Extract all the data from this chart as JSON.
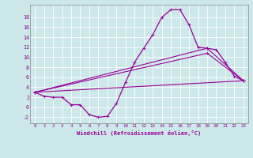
{
  "xlabel": "Windchill (Refroidissement éolien,°C)",
  "bg_color": "#cce8e8",
  "line_color": "#990099",
  "grid_color": "#ffffff",
  "xlim": [
    -0.5,
    23.5
  ],
  "ylim": [
    -3.2,
    20.5
  ],
  "yticks": [
    -2,
    0,
    2,
    4,
    6,
    8,
    10,
    12,
    14,
    16,
    18
  ],
  "xticks": [
    0,
    1,
    2,
    3,
    4,
    5,
    6,
    7,
    8,
    9,
    10,
    11,
    12,
    13,
    14,
    15,
    16,
    17,
    18,
    19,
    20,
    21,
    22,
    23
  ],
  "curve_x": [
    0,
    1,
    2,
    3,
    4,
    5,
    6,
    7,
    8,
    9,
    10,
    11,
    12,
    13,
    14,
    15,
    16,
    17,
    18,
    19,
    20,
    21,
    22,
    23
  ],
  "curve_y": [
    3.0,
    2.2,
    2.0,
    2.0,
    0.5,
    0.5,
    -1.5,
    -2.0,
    -1.8,
    0.8,
    5.0,
    9.0,
    11.8,
    14.5,
    18.0,
    19.5,
    19.5,
    16.5,
    12.0,
    11.8,
    11.5,
    9.0,
    6.2,
    5.3
  ],
  "line1_x": [
    0,
    23
  ],
  "line1_y": [
    3.0,
    5.3
  ],
  "line2_x": [
    0,
    19,
    23
  ],
  "line2_y": [
    3.0,
    10.8,
    5.3
  ],
  "line3_x": [
    0,
    19,
    23
  ],
  "line3_y": [
    3.0,
    11.8,
    5.3
  ]
}
